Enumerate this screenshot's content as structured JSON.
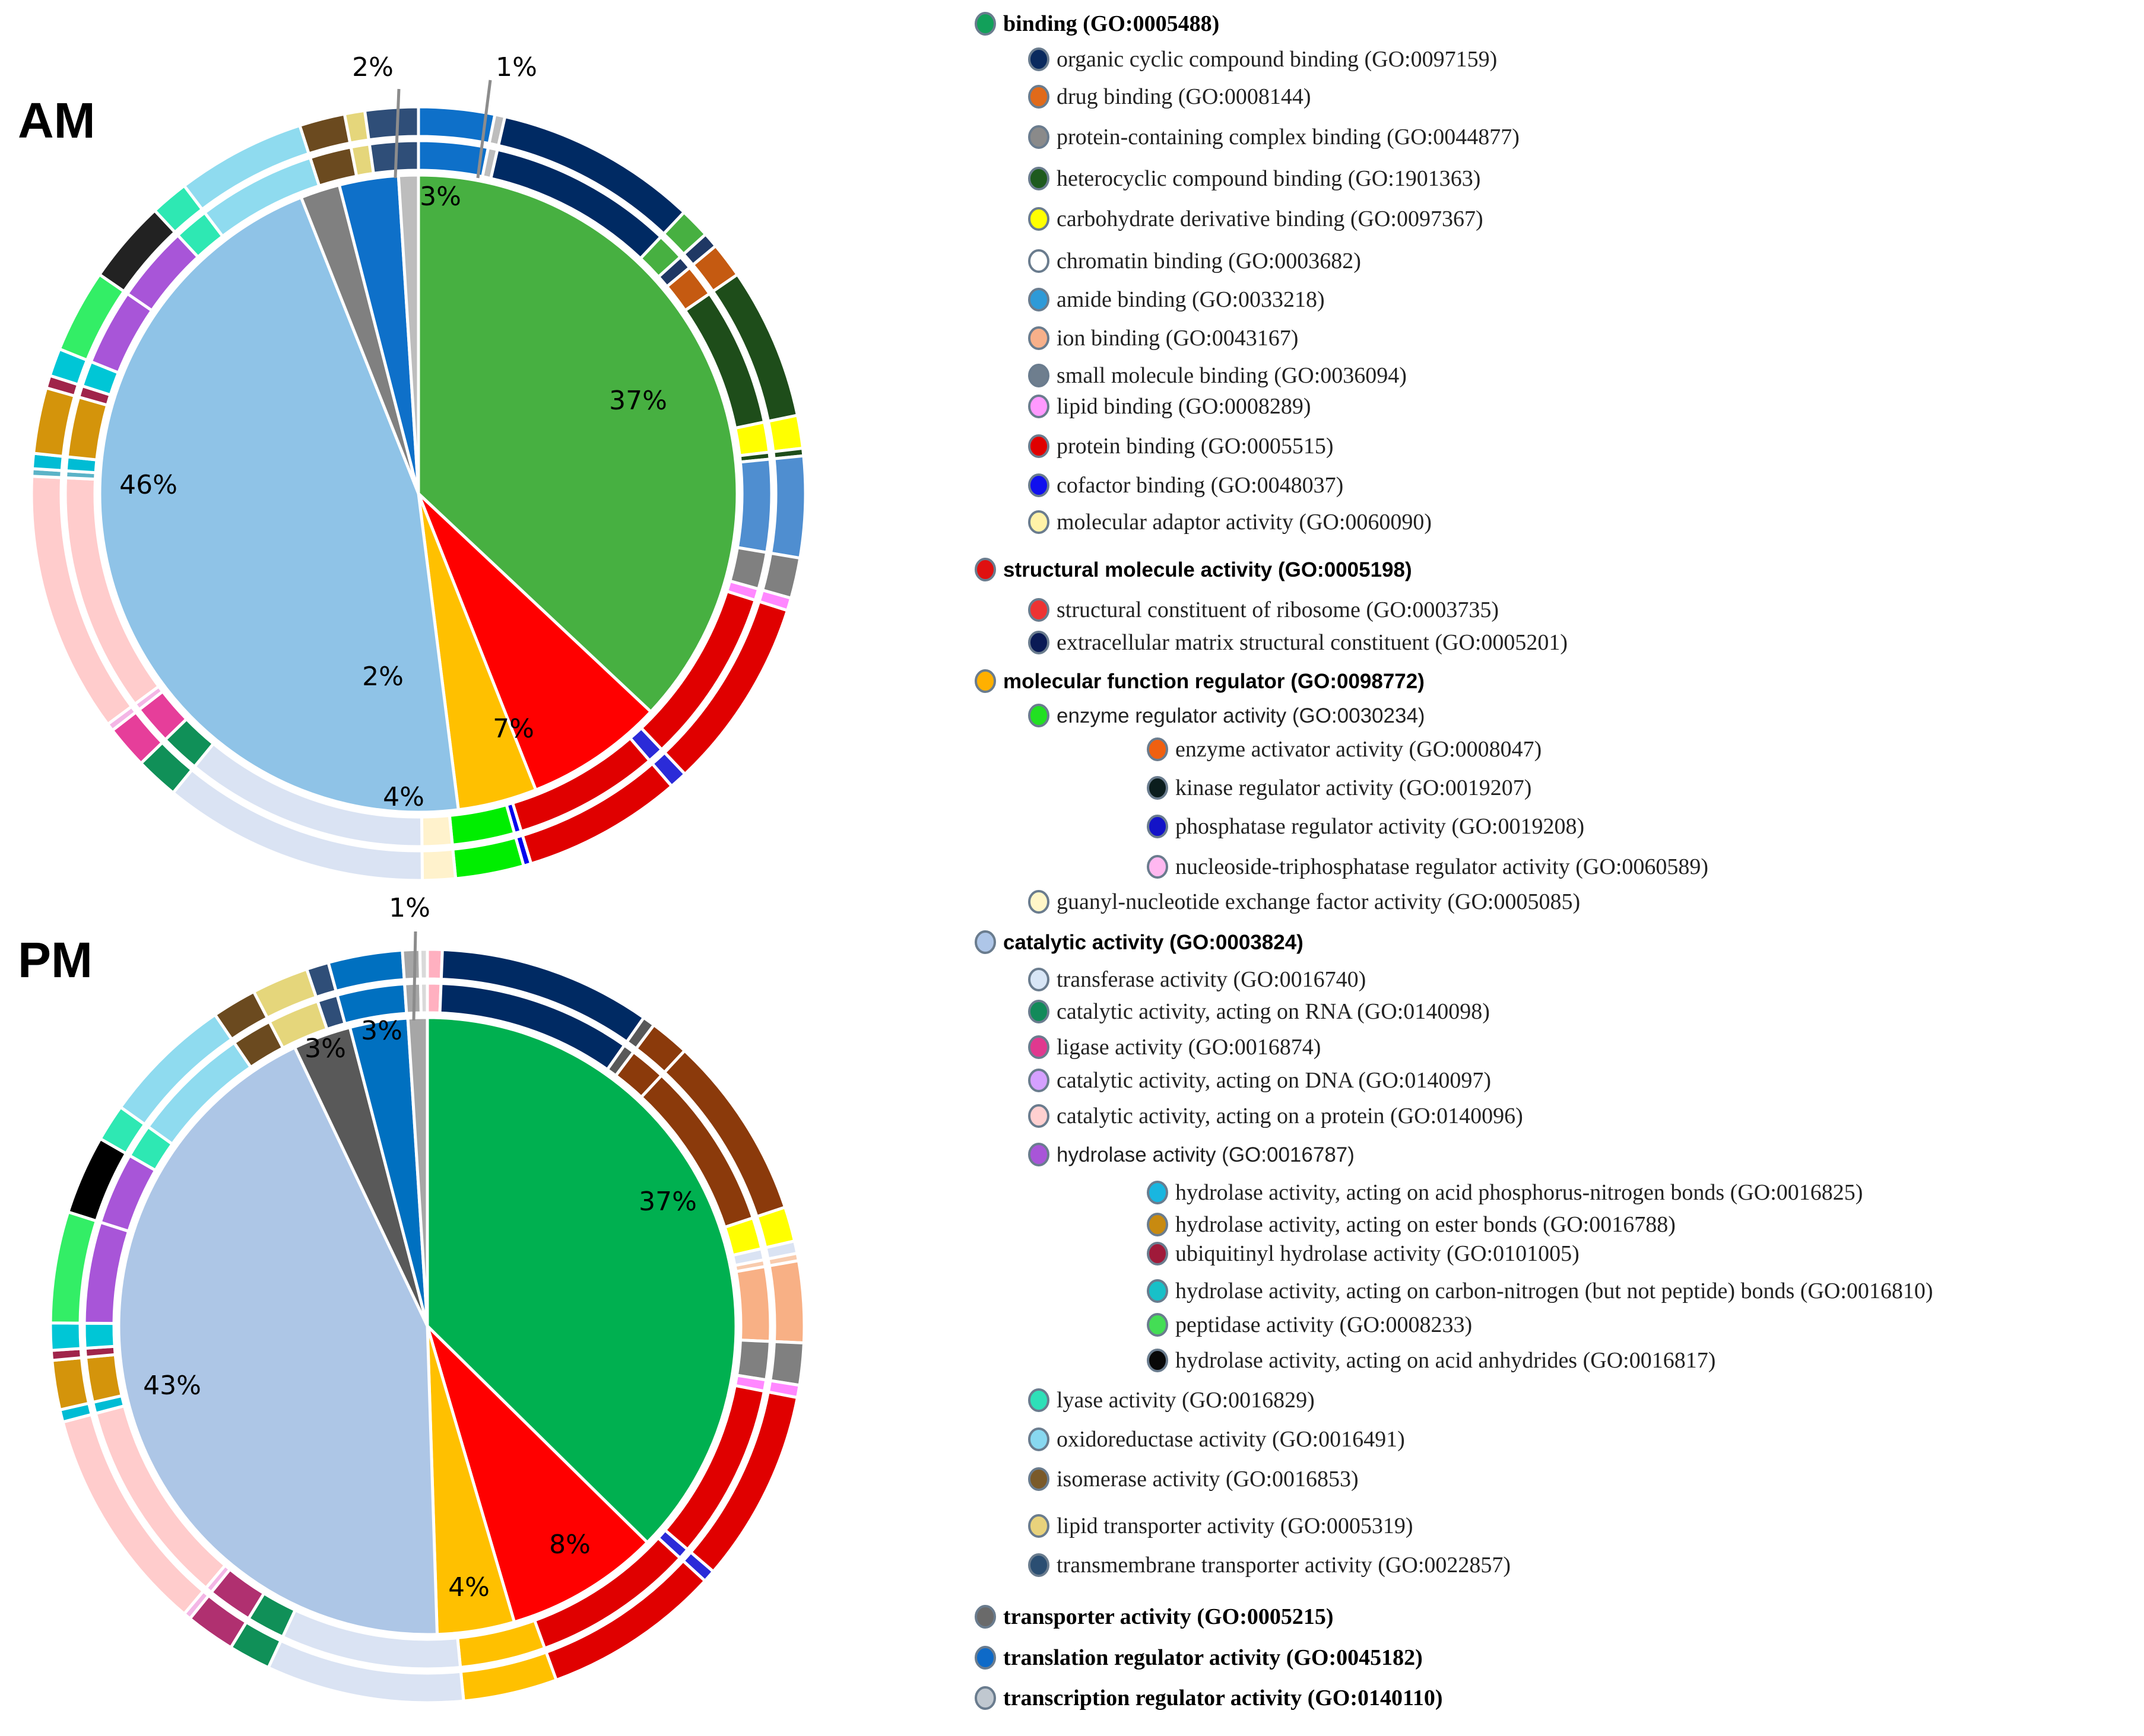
{
  "colors": {
    "binding": "#00b050",
    "structural": "#ff0000",
    "regulator": "#ffc000",
    "catalytic": "#adc6e6",
    "transporter": "#595959",
    "translation": "#0070c0",
    "transcription": "#a6a6a6"
  },
  "chart_data": [
    {
      "type": "pie",
      "title": "AM",
      "slices": [
        {
          "category": "binding",
          "value": 37,
          "label": "37%",
          "color": "#47b041"
        },
        {
          "category": "structural molecule activity",
          "value": 7,
          "label": "7%",
          "color": "#ff0000"
        },
        {
          "category": "molecular function regulator",
          "value": 4,
          "label": "4%",
          "color": "#ffc000"
        },
        {
          "category": "catalytic activity",
          "value": 46,
          "label": "46%",
          "color": "#8fc3e7"
        },
        {
          "category": "transporter activity",
          "value": 2,
          "label": "2%",
          "color": "#808080"
        },
        {
          "category": "translation regulator activity",
          "value": 3,
          "label": "3%",
          "color": "#0e70c9"
        },
        {
          "category": "transcription regulator activity",
          "value": 1,
          "label": "1%",
          "color": "#bdbdbd"
        }
      ],
      "callouts": [
        "2%",
        "1%"
      ],
      "outer_ring": [
        {
          "value": 3,
          "color": "#0e70c9"
        },
        {
          "value": 0.4,
          "color": "#bdbdbd"
        },
        {
          "value": 8,
          "color": "#002a63"
        },
        {
          "value": 1.2,
          "color": "#47b041"
        },
        {
          "value": 0.6,
          "color": "#1f3864"
        },
        {
          "value": 1.4,
          "color": "#c55a11"
        },
        {
          "value": 6,
          "color": "#1e4d1a"
        },
        {
          "value": 1.3,
          "color": "#ffff00"
        },
        {
          "value": 0.3,
          "color": "#1e4d1a"
        },
        {
          "value": 4,
          "color": "#4f8ed0"
        },
        {
          "value": 1.6,
          "color": "#808080"
        },
        {
          "value": 0.5,
          "color": "#ff88ff"
        },
        {
          "value": 7.6,
          "color": "#e00000"
        },
        {
          "value": 0.7,
          "color": "#2b2bd8"
        },
        {
          "value": 6.3,
          "color": "#e00000"
        },
        {
          "value": 0.3,
          "color": "#0000ee"
        },
        {
          "value": 2.7,
          "color": "#00ee00"
        },
        {
          "value": 1.3,
          "color": "#fff2cc"
        },
        {
          "value": 10.5,
          "color": "#dae3f3"
        },
        {
          "value": 1.7,
          "color": "#109058"
        },
        {
          "value": 1.7,
          "color": "#e63e9a"
        },
        {
          "value": 0.3,
          "color": "#f4b6e6"
        },
        {
          "value": 10.3,
          "color": "#ffcccc"
        },
        {
          "value": 0.3,
          "color": "#5bb3c7"
        },
        {
          "value": 0.6,
          "color": "#00bcd4"
        },
        {
          "value": 2.6,
          "color": "#d4940b"
        },
        {
          "value": 0.5,
          "color": "#a0244a"
        },
        {
          "value": 1.1,
          "color": "#00c6d6"
        },
        {
          "value": 3.3,
          "color": "#33ee66"
        },
        {
          "value": 3.3,
          "color": "#222222"
        },
        {
          "value": 1.5,
          "color": "#2ee8b3"
        },
        {
          "value": 5.1,
          "color": "#8fdbef"
        },
        {
          "value": 1.8,
          "color": "#6b4a1f"
        },
        {
          "value": 0.8,
          "color": "#e5d67b"
        },
        {
          "value": 2.1,
          "color": "#2f4e78"
        }
      ],
      "inner_ring": [
        {
          "value": 3,
          "color": "#0e70c9"
        },
        {
          "value": 0.4,
          "color": "#bdbdbd"
        },
        {
          "value": 8,
          "color": "#002a63"
        },
        {
          "value": 1.2,
          "color": "#47b041"
        },
        {
          "value": 0.6,
          "color": "#1f3864"
        },
        {
          "value": 1.4,
          "color": "#c55a11"
        },
        {
          "value": 6,
          "color": "#1e4d1a"
        },
        {
          "value": 1.3,
          "color": "#ffff00"
        },
        {
          "value": 0.3,
          "color": "#1e4d1a"
        },
        {
          "value": 4,
          "color": "#4f8ed0"
        },
        {
          "value": 1.6,
          "color": "#808080"
        },
        {
          "value": 0.5,
          "color": "#ff88ff"
        },
        {
          "value": 7.6,
          "color": "#e00000"
        },
        {
          "value": 0.7,
          "color": "#2b2bd8"
        },
        {
          "value": 6.3,
          "color": "#e00000"
        },
        {
          "value": 0.3,
          "color": "#0000ee"
        },
        {
          "value": 2.7,
          "color": "#00ee00"
        },
        {
          "value": 1.3,
          "color": "#fff2cc"
        },
        {
          "value": 10.5,
          "color": "#dae3f3"
        },
        {
          "value": 1.7,
          "color": "#109058"
        },
        {
          "value": 1.7,
          "color": "#e63e9a"
        },
        {
          "value": 0.3,
          "color": "#f4b6e6"
        },
        {
          "value": 10.3,
          "color": "#ffcccc"
        },
        {
          "value": 0.3,
          "color": "#5bb3c7"
        },
        {
          "value": 0.6,
          "color": "#00bcd4"
        },
        {
          "value": 2.6,
          "color": "#d4940b"
        },
        {
          "value": 0.5,
          "color": "#a0244a"
        },
        {
          "value": 1.1,
          "color": "#00c6d6"
        },
        {
          "value": 3.3,
          "color": "#a855d8"
        },
        {
          "value": 3.3,
          "color": "#a855d8"
        },
        {
          "value": 1.5,
          "color": "#2ee8b3"
        },
        {
          "value": 5.1,
          "color": "#8fdbef"
        },
        {
          "value": 1.8,
          "color": "#6b4a1f"
        },
        {
          "value": 0.8,
          "color": "#e5d67b"
        },
        {
          "value": 2.1,
          "color": "#2f4e78"
        }
      ]
    },
    {
      "type": "pie",
      "title": "PM",
      "slices": [
        {
          "category": "binding",
          "value": 37,
          "label": "37%",
          "color": "#00b050"
        },
        {
          "category": "structural molecule activity",
          "value": 8,
          "label": "8%",
          "color": "#ff0000"
        },
        {
          "category": "molecular function regulator",
          "value": 4,
          "label": "4%",
          "color": "#ffc000"
        },
        {
          "category": "catalytic activity",
          "value": 43,
          "label": "43%",
          "color": "#adc6e6"
        },
        {
          "category": "transporter activity",
          "value": 3,
          "label": "3%",
          "color": "#595959"
        },
        {
          "category": "translation regulator activity",
          "value": 3,
          "label": "3%",
          "color": "#0070c0"
        },
        {
          "category": "transcription regulator activity",
          "value": 1,
          "label": "1%",
          "color": "#a6a6a6"
        }
      ],
      "callouts": [
        "1%"
      ],
      "outer_ring": [
        {
          "value": 0.6,
          "color": "#ffb0c0"
        },
        {
          "value": 8.6,
          "color": "#002a63"
        },
        {
          "value": 0.5,
          "color": "#595959"
        },
        {
          "value": 1.6,
          "color": "#8b3a0b"
        },
        {
          "value": 7.5,
          "color": "#8b3a0b"
        },
        {
          "value": 1.4,
          "color": "#ffff00"
        },
        {
          "value": 0.5,
          "color": "#dae3f3"
        },
        {
          "value": 0.3,
          "color": "#f8cbad"
        },
        {
          "value": 3.3,
          "color": "#f8b085"
        },
        {
          "value": 1.7,
          "color": "#808080"
        },
        {
          "value": 0.5,
          "color": "#ff88ff"
        },
        {
          "value": 7.8,
          "color": "#e00000"
        },
        {
          "value": 0.5,
          "color": "#2b2bd8"
        },
        {
          "value": 7.2,
          "color": "#e00000"
        },
        {
          "value": 3.8,
          "color": "#ffc000"
        },
        {
          "value": 8,
          "color": "#dae3f3"
        },
        {
          "value": 1.7,
          "color": "#109058"
        },
        {
          "value": 2,
          "color": "#b03070"
        },
        {
          "value": 0.3,
          "color": "#f4b6e6"
        },
        {
          "value": 9.2,
          "color": "#ffcccc"
        },
        {
          "value": 0.5,
          "color": "#00bcd4"
        },
        {
          "value": 2,
          "color": "#d4940b"
        },
        {
          "value": 0.4,
          "color": "#a0244a"
        },
        {
          "value": 1.1,
          "color": "#00c6d6"
        },
        {
          "value": 4.5,
          "color": "#33ee66"
        },
        {
          "value": 3.2,
          "color": "#000000"
        },
        {
          "value": 1.5,
          "color": "#2ee8b3"
        },
        {
          "value": 5.3,
          "color": "#8fdbef"
        },
        {
          "value": 1.8,
          "color": "#6b4a1f"
        },
        {
          "value": 2.3,
          "color": "#e5d67b"
        },
        {
          "value": 0.9,
          "color": "#2f4e78"
        },
        {
          "value": 3,
          "color": "#0070c0"
        },
        {
          "value": 0.7,
          "color": "#a6a6a6"
        },
        {
          "value": 0.3,
          "color": "#d9d9d9"
        }
      ],
      "inner_ring": [
        {
          "value": 0.6,
          "color": "#ffb0c0"
        },
        {
          "value": 8.6,
          "color": "#002a63"
        },
        {
          "value": 0.5,
          "color": "#595959"
        },
        {
          "value": 1.6,
          "color": "#8b3a0b"
        },
        {
          "value": 7.5,
          "color": "#8b3a0b"
        },
        {
          "value": 1.4,
          "color": "#ffff00"
        },
        {
          "value": 0.5,
          "color": "#dae3f3"
        },
        {
          "value": 0.3,
          "color": "#f8cbad"
        },
        {
          "value": 3.3,
          "color": "#f8b085"
        },
        {
          "value": 1.7,
          "color": "#808080"
        },
        {
          "value": 0.5,
          "color": "#ff88ff"
        },
        {
          "value": 7.8,
          "color": "#e00000"
        },
        {
          "value": 0.5,
          "color": "#2b2bd8"
        },
        {
          "value": 7.2,
          "color": "#e00000"
        },
        {
          "value": 3.8,
          "color": "#ffc000"
        },
        {
          "value": 8,
          "color": "#dae3f3"
        },
        {
          "value": 1.7,
          "color": "#109058"
        },
        {
          "value": 2,
          "color": "#b03070"
        },
        {
          "value": 0.3,
          "color": "#f4b6e6"
        },
        {
          "value": 9.2,
          "color": "#ffcccc"
        },
        {
          "value": 0.5,
          "color": "#00bcd4"
        },
        {
          "value": 2,
          "color": "#d4940b"
        },
        {
          "value": 0.4,
          "color": "#a0244a"
        },
        {
          "value": 1.1,
          "color": "#00c6d6"
        },
        {
          "value": 4.5,
          "color": "#a855d8"
        },
        {
          "value": 3.2,
          "color": "#a855d8"
        },
        {
          "value": 1.5,
          "color": "#2ee8b3"
        },
        {
          "value": 5.3,
          "color": "#8fdbef"
        },
        {
          "value": 1.8,
          "color": "#6b4a1f"
        },
        {
          "value": 2.3,
          "color": "#e5d67b"
        },
        {
          "value": 0.9,
          "color": "#2f4e78"
        },
        {
          "value": 3,
          "color": "#0070c0"
        },
        {
          "value": 0.7,
          "color": "#a6a6a6"
        },
        {
          "value": 0.3,
          "color": "#d9d9d9"
        }
      ]
    }
  ],
  "legend": [
    {
      "text": "binding (GO:0005488)",
      "color": "#12a05a",
      "level": 0,
      "bold": true
    },
    {
      "text": "organic cyclic compound binding (GO:0097159)",
      "color": "#0a2a5e",
      "level": 1
    },
    {
      "text": "drug binding (GO:0008144)",
      "color": "#e06a1a",
      "level": 1
    },
    {
      "text": "protein-containing complex binding (GO:0044877)",
      "color": "#8a8a8a",
      "level": 1
    },
    {
      "text": "heterocyclic compound binding (GO:1901363)",
      "color": "#1e5a1e",
      "level": 1
    },
    {
      "text": "carbohydrate derivative binding (GO:0097367)",
      "color": "#ffff00",
      "level": 1
    },
    {
      "text": "chromatin binding (GO:0003682)",
      "color": "#ffffff",
      "level": 1
    },
    {
      "text": "amide binding (GO:0033218)",
      "color": "#2e9ad8",
      "level": 1
    },
    {
      "text": "ion binding (GO:0043167)",
      "color": "#f7b08a",
      "level": 1
    },
    {
      "text": "small molecule binding (GO:0036094)",
      "color": "#6e7e8e",
      "level": 1
    },
    {
      "text": "lipid binding (GO:0008289)",
      "color": "#ff99ff",
      "level": 1
    },
    {
      "text": "protein binding (GO:0005515)",
      "color": "#e00000",
      "level": 1
    },
    {
      "text": "cofactor binding (GO:0048037)",
      "color": "#1010ee",
      "level": 1
    },
    {
      "text": "molecular adaptor activity (GO:0060090)",
      "color": "#fff2a8",
      "level": 1
    },
    {
      "text": "structural molecule activity (GO:0005198)",
      "color": "#e01010",
      "level": 0,
      "bold": true,
      "sans": true
    },
    {
      "text": "structural constituent of ribosome (GO:0003735)",
      "color": "#ee3333",
      "level": 1
    },
    {
      "text": "extracellular matrix structural constituent (GO:0005201)",
      "color": "#0a1a55",
      "level": 1
    },
    {
      "text": "molecular function regulator (GO:0098772)",
      "color": "#ffb000",
      "level": 0,
      "bold": true,
      "sans": true
    },
    {
      "text": "enzyme regulator activity (GO:0030234)",
      "color": "#22e022",
      "level": 1,
      "sans": true
    },
    {
      "text": "enzyme activator activity (GO:0008047)",
      "color": "#f06010",
      "level": 2
    },
    {
      "text": "kinase regulator activity (GO:0019207)",
      "color": "#0b1d1d",
      "level": 2
    },
    {
      "text": "phosphatase regulator activity (GO:0019208)",
      "color": "#1313c8",
      "level": 2
    },
    {
      "text": "nucleoside-triphosphatase regulator activity (GO:0060589)",
      "color": "#ffb8f0",
      "level": 2
    },
    {
      "text": "guanyl-nucleotide exchange factor activity (GO:0005085)",
      "color": "#fff6c8",
      "level": 1
    },
    {
      "text": "catalytic activity (GO:0003824)",
      "color": "#aec6e8",
      "level": 0,
      "bold": true,
      "sans": true
    },
    {
      "text": "transferase activity (GO:0016740)",
      "color": "#d8e6f6",
      "level": 1
    },
    {
      "text": "catalytic activity, acting on RNA (GO:0140098)",
      "color": "#128a5a",
      "level": 1
    },
    {
      "text": "ligase activity (GO:0016874)",
      "color": "#e0398f",
      "level": 1
    },
    {
      "text": "catalytic activity, acting on DNA (GO:0140097)",
      "color": "#d5a0ff",
      "level": 1
    },
    {
      "text": "catalytic activity, acting on a protein (GO:0140096)",
      "color": "#ffd0d0",
      "level": 1
    },
    {
      "text": "hydrolase activity (GO:0016787)",
      "color": "#a855d8",
      "level": 1,
      "sans": true
    },
    {
      "text": "hydrolase activity, acting on acid phosphorus-nitrogen bonds (GO:0016825)",
      "color": "#19b6e0",
      "level": 2
    },
    {
      "text": "hydrolase activity, acting on ester bonds (GO:0016788)",
      "color": "#c88a10",
      "level": 2
    },
    {
      "text": "ubiquitinyl hydrolase activity (GO:0101005)",
      "color": "#a01a3a",
      "level": 2
    },
    {
      "text": "hydrolase activity, acting on carbon-nitrogen (but not peptide) bonds (GO:0016810)",
      "color": "#18c0c8",
      "level": 2
    },
    {
      "text": "peptidase activity (GO:0008233)",
      "color": "#44dd55",
      "level": 2
    },
    {
      "text": "hydrolase activity, acting on acid anhydrides (GO:0016817)",
      "color": "#080808",
      "level": 2
    },
    {
      "text": "lyase activity (GO:0016829)",
      "color": "#2ee0b8",
      "level": 1
    },
    {
      "text": "oxidoreductase activity (GO:0016491)",
      "color": "#88d8f0",
      "level": 1
    },
    {
      "text": "isomerase activity (GO:0016853)",
      "color": "#7a5a2a",
      "level": 1
    },
    {
      "text": "lipid transporter activity (GO:0005319)",
      "color": "#e8d27c",
      "level": 1
    },
    {
      "text": "transmembrane transporter activity (GO:0022857)",
      "color": "#2b4e72",
      "level": 1
    },
    {
      "text": "transporter activity (GO:0005215)",
      "color": "#6a6a6a",
      "level": 0,
      "bold": true
    },
    {
      "text": "translation regulator activity (GO:0045182)",
      "color": "#0e6ac8",
      "level": 0,
      "bold": true
    },
    {
      "text": "transcription regulator activity (GO:0140110)",
      "color": "#c0c8d0",
      "level": 0,
      "bold": true
    }
  ]
}
